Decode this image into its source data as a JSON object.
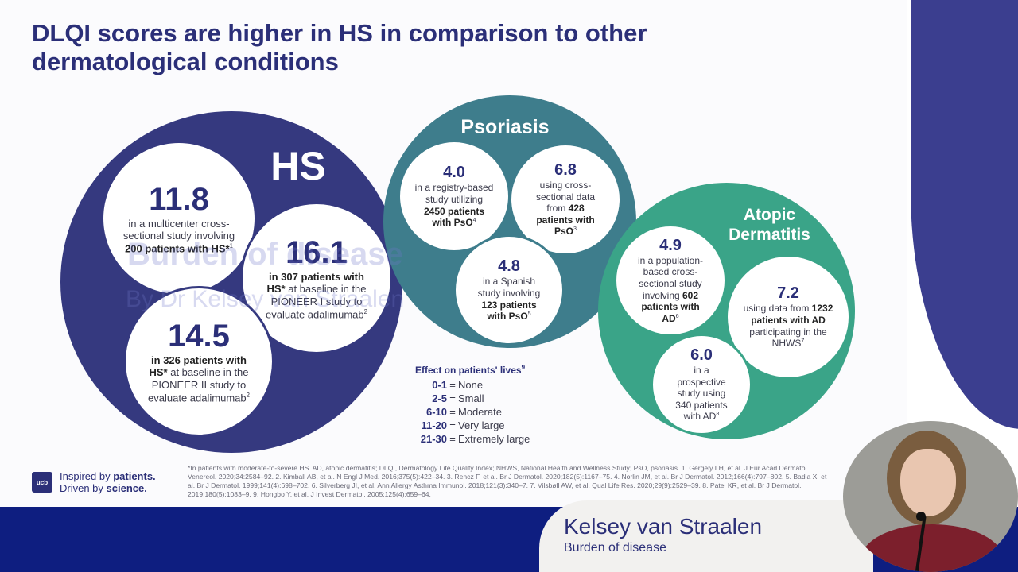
{
  "slide": {
    "title": "DLQI scores are higher in HS in comparison to other dermatological conditions",
    "watermark_line1": "Burden of disease",
    "watermark_line2": "By Dr Kelsey van Straalen"
  },
  "hs": {
    "title": "HS",
    "color": "#35397f",
    "stats": [
      {
        "value": "11.8",
        "text_a": "in a multicenter cross-sectional study involving ",
        "bold": "200 patients with HS*",
        "sup": "1",
        "text_b": ""
      },
      {
        "value": "16.1",
        "text_a": "",
        "bold": "in 307 patients with HS*",
        "sup": "2",
        "text_b": " at baseline in the PIONEER I study to evaluate adalimumab"
      },
      {
        "value": "14.5",
        "text_a": "",
        "bold": "in 326 patients with HS*",
        "sup": "2",
        "text_b": " at baseline in the PIONEER II study to evaluate adalimumab"
      }
    ]
  },
  "psoriasis": {
    "title": "Psoriasis",
    "color": "#3e7d8c",
    "stats": [
      {
        "value": "4.0",
        "text_a": "in a registry-based study utilizing ",
        "bold": "2450 patients with PsO",
        "sup": "4",
        "text_b": ""
      },
      {
        "value": "6.8",
        "text_a": "using cross-sectional data from ",
        "bold": "428 patients with PsO",
        "sup": "3",
        "text_b": ""
      },
      {
        "value": "4.8",
        "text_a": "in a Spanish study involving ",
        "bold": "123 patients with PsO",
        "sup": "5",
        "text_b": ""
      }
    ]
  },
  "ad": {
    "title_line1": "Atopic",
    "title_line2": "Dermatitis",
    "color": "#3aa488",
    "stats": [
      {
        "value": "4.9",
        "text_a": "in a population-based cross-sectional study involving ",
        "bold": "602 patients with AD",
        "sup": "6",
        "text_b": ""
      },
      {
        "value": "7.2",
        "text_a": "using data from ",
        "bold": "1232 patients with AD",
        "sup": "7",
        "text_b": " participating in the NHWS"
      },
      {
        "value": "6.0",
        "text_a": "in a prospective study using 340 patients with AD",
        "bold": "",
        "sup": "8",
        "text_b": ""
      }
    ]
  },
  "effect": {
    "title": "Effect on patients' lives",
    "title_sup": "9",
    "rows": [
      {
        "range": "0-1",
        "label": "None"
      },
      {
        "range": "2-5",
        "label": "Small"
      },
      {
        "range": "6-10",
        "label": "Moderate"
      },
      {
        "range": "11-20",
        "label": "Very large"
      },
      {
        "range": "21-30",
        "label": "Extremely large"
      }
    ]
  },
  "logo": {
    "mark": "ucb",
    "line1_a": "Inspired by ",
    "line1_b": "patients.",
    "line2_a": "Driven by ",
    "line2_b": "science."
  },
  "footnote": "*In patients with moderate-to-severe HS. AD, atopic dermatitis; DLQI, Dermatology Life Quality Index; NHWS, National Health and Wellness Study; PsO, psoriasis. 1. Gergely LH, et al. J Eur Acad Dermatol Venereol. 2020;34:2584–92. 2. Kimball AB, et al. N Engl J Med. 2016;375(5):422–34. 3. Rencz F, et al. Br J Dermatol. 2020;182(5):1167–75. 4. Norlin JM, et al. Br J Dermatol. 2012;166(4):797–802. 5. Badia X, et al. Br J Dermatol. 1999;141(4):698–702. 6. Silverberg JI, et al. Ann Allergy Asthma Immunol. 2018;121(3):340–7. 7. Vilsbøll AW, et al. Qual Life Res. 2020;29(9):2529–39. 8. Patel KR, et al. Br J Dermatol. 2019;180(5):1083–9. 9. Hongbo Y, et al. J Invest Dermatol. 2005;125(4):659–64.",
  "speaker": {
    "name": "Kelsey van Straalen",
    "role": "Burden of disease"
  }
}
